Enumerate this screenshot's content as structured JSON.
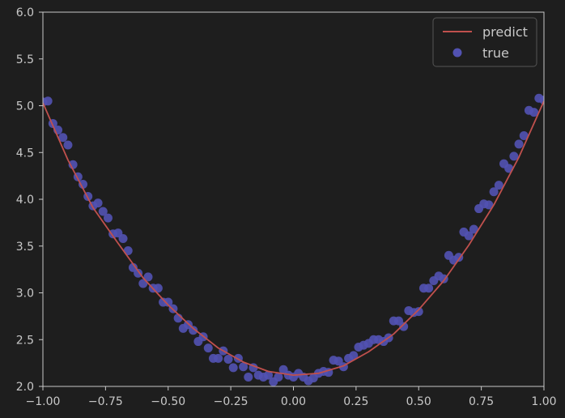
{
  "chart_data": {
    "type": "scatter",
    "title": "",
    "xlabel": "",
    "ylabel": "",
    "xlim": [
      -1.0,
      1.0
    ],
    "ylim": [
      2.0,
      6.0
    ],
    "grid": false,
    "legend_position": "top-right",
    "x_ticks": [
      "−1.00",
      "−0.75",
      "−0.50",
      "−0.25",
      "0.00",
      "0.25",
      "0.50",
      "0.75",
      "1.00"
    ],
    "y_ticks": [
      "2.0",
      "2.5",
      "3.0",
      "3.5",
      "4.0",
      "4.5",
      "5.0",
      "5.5",
      "6.0"
    ],
    "legend": [
      {
        "label": "predict",
        "kind": "line",
        "color": "#c0504d"
      },
      {
        "label": "true",
        "kind": "marker",
        "color": "#5252b2"
      }
    ],
    "series": [
      {
        "name": "predict",
        "kind": "line",
        "color": "#c0504d",
        "x": [
          -1.0,
          -0.9,
          -0.8,
          -0.7,
          -0.6,
          -0.5,
          -0.4,
          -0.3,
          -0.2,
          -0.1,
          0.0,
          0.1,
          0.2,
          0.3,
          0.4,
          0.5,
          0.6,
          0.7,
          0.8,
          0.9,
          1.0
        ],
        "y": [
          5.03,
          4.42,
          3.91,
          3.53,
          3.16,
          2.87,
          2.62,
          2.41,
          2.26,
          2.16,
          2.12,
          2.14,
          2.22,
          2.37,
          2.56,
          2.82,
          3.13,
          3.51,
          3.94,
          4.45,
          5.05
        ]
      },
      {
        "name": "true",
        "kind": "scatter",
        "color": "#5252b2",
        "x": [
          -1.0,
          -0.98,
          -0.96,
          -0.94,
          -0.92,
          -0.9,
          -0.88,
          -0.86,
          -0.84,
          -0.82,
          -0.8,
          -0.78,
          -0.76,
          -0.74,
          -0.72,
          -0.7,
          -0.68,
          -0.66,
          -0.64,
          -0.62,
          -0.6,
          -0.58,
          -0.56,
          -0.54,
          -0.52,
          -0.5,
          -0.48,
          -0.46,
          -0.44,
          -0.42,
          -0.4,
          -0.38,
          -0.36,
          -0.34,
          -0.32,
          -0.3,
          -0.28,
          -0.26,
          -0.24,
          -0.22,
          -0.2,
          -0.18,
          -0.16,
          -0.14,
          -0.12,
          -0.1,
          -0.08,
          -0.06,
          -0.04,
          -0.02,
          0.0,
          0.02,
          0.04,
          0.06,
          0.08,
          0.1,
          0.12,
          0.14,
          0.16,
          0.18,
          0.2,
          0.22,
          0.24,
          0.26,
          0.28,
          0.3,
          0.32,
          0.34,
          0.36,
          0.38,
          0.4,
          0.42,
          0.44,
          0.46,
          0.48,
          0.5,
          0.52,
          0.54,
          0.56,
          0.58,
          0.6,
          0.62,
          0.64,
          0.66,
          0.68,
          0.7,
          0.72,
          0.74,
          0.76,
          0.78,
          0.8,
          0.82,
          0.84,
          0.86,
          0.88,
          0.9,
          0.92,
          0.94,
          0.96,
          0.98,
          1.0
        ],
        "y": [
          5.04,
          5.05,
          4.81,
          4.74,
          4.66,
          4.58,
          4.37,
          4.24,
          4.16,
          4.03,
          3.93,
          3.96,
          3.87,
          3.8,
          3.63,
          3.64,
          3.58,
          3.45,
          3.27,
          3.21,
          3.1,
          3.17,
          3.05,
          3.05,
          2.9,
          2.9,
          2.83,
          2.73,
          2.62,
          2.66,
          2.6,
          2.48,
          2.53,
          2.41,
          2.3,
          2.3,
          2.38,
          2.29,
          2.2,
          2.3,
          2.21,
          2.1,
          2.2,
          2.12,
          2.1,
          2.12,
          2.05,
          2.1,
          2.18,
          2.12,
          2.1,
          2.14,
          2.1,
          2.06,
          2.09,
          2.14,
          2.16,
          2.15,
          2.28,
          2.27,
          2.21,
          2.3,
          2.33,
          2.42,
          2.44,
          2.46,
          2.5,
          2.5,
          2.48,
          2.52,
          2.7,
          2.7,
          2.64,
          2.81,
          2.79,
          2.8,
          3.05,
          3.05,
          3.13,
          3.18,
          3.15,
          3.4,
          3.35,
          3.38,
          3.65,
          3.61,
          3.68,
          3.9,
          3.95,
          3.94,
          4.08,
          4.15,
          4.38,
          4.33,
          4.46,
          4.59,
          4.68,
          4.95,
          4.93,
          5.08,
          5.06
        ]
      }
    ]
  }
}
